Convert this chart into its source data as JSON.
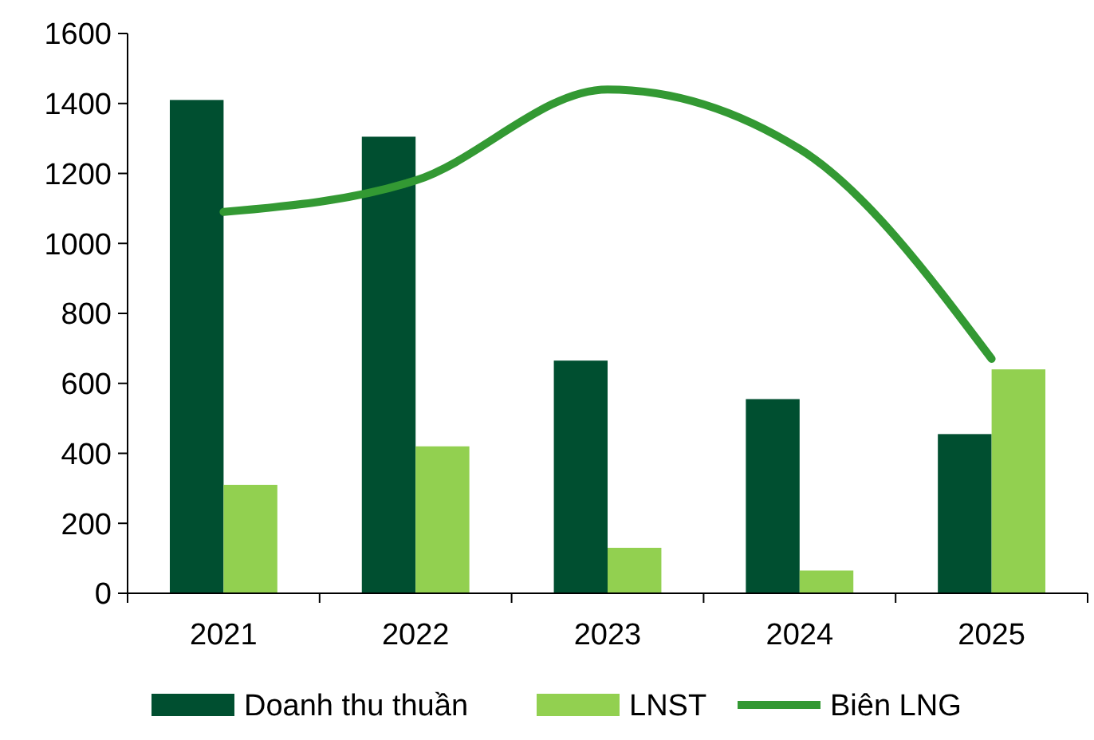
{
  "chart_data": {
    "type": "bar",
    "categories": [
      "2021",
      "2022",
      "2023",
      "2024",
      "2025"
    ],
    "series": [
      {
        "name": "Doanh thu thuần",
        "color": "#004f30",
        "values": [
          1410,
          1305,
          665,
          555,
          455
        ]
      },
      {
        "name": "LNST",
        "color": "#92d050",
        "values": [
          310,
          420,
          130,
          65,
          640
        ]
      },
      {
        "name": "Biên LNG",
        "type": "line",
        "color": "#339933",
        "values": [
          1090,
          1180,
          1440,
          1270,
          670
        ],
        "marker": "none"
      }
    ],
    "ylim": [
      0,
      1600
    ],
    "yticks": [
      0,
      200,
      400,
      600,
      800,
      1000,
      1200,
      1400,
      1600
    ],
    "grid": false,
    "legend": "bottom"
  }
}
